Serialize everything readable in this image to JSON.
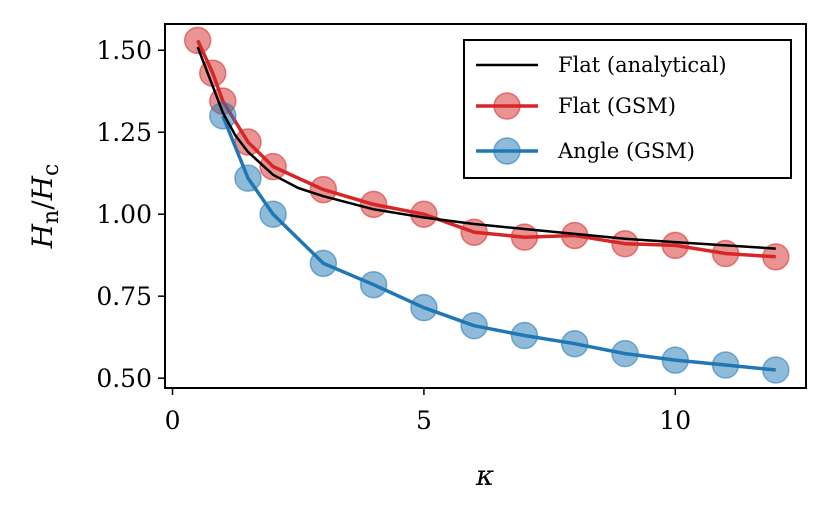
{
  "chart_data": {
    "type": "line",
    "title": "",
    "xlabel": "κ",
    "ylabel": "Hn/Hc",
    "ylabel_parts": {
      "h1": "H",
      "sub1": "n",
      "slash": "/",
      "h2": "H",
      "sub2": "c"
    },
    "xlim": [
      -0.15,
      12.6
    ],
    "ylim": [
      0.47,
      1.58
    ],
    "xticks": [
      0,
      5,
      10
    ],
    "xtick_labels": [
      "0",
      "5",
      "10"
    ],
    "yticks": [
      0.5,
      0.75,
      1.0,
      1.25,
      1.5
    ],
    "ytick_labels": [
      "0.50",
      "0.75",
      "1.00",
      "1.25",
      "1.50"
    ],
    "grid": false,
    "legend_position": "top-right",
    "series": [
      {
        "name": "Flat (analytical)",
        "color": "#000000",
        "style": "line",
        "x": [
          0.5,
          0.7,
          0.85,
          1.0,
          1.25,
          1.5,
          2.0,
          2.5,
          3,
          4,
          5,
          6,
          7,
          8,
          9,
          10,
          11,
          12
        ],
        "values": [
          1.51,
          1.43,
          1.37,
          1.31,
          1.24,
          1.19,
          1.12,
          1.08,
          1.055,
          1.015,
          0.99,
          0.97,
          0.955,
          0.94,
          0.925,
          0.915,
          0.905,
          0.895
        ]
      },
      {
        "name": "Flat (GSM)",
        "color": "#d62728",
        "style": "line+markers",
        "x": [
          0.5,
          0.8,
          1.0,
          1.5,
          2,
          3,
          4,
          5,
          6,
          7,
          8,
          9,
          10,
          11,
          12
        ],
        "values": [
          1.53,
          1.43,
          1.345,
          1.22,
          1.145,
          1.075,
          1.03,
          1.0,
          0.945,
          0.93,
          0.935,
          0.91,
          0.905,
          0.88,
          0.87
        ]
      },
      {
        "name": "Angle (GSM)",
        "color": "#1f77b4",
        "style": "line+markers",
        "x": [
          1,
          1.5,
          2,
          3,
          4,
          5,
          6,
          7,
          8,
          9,
          10,
          11,
          12
        ],
        "values": [
          1.3,
          1.11,
          1.0,
          0.85,
          0.785,
          0.715,
          0.66,
          0.63,
          0.605,
          0.575,
          0.555,
          0.54,
          0.525
        ]
      }
    ]
  }
}
